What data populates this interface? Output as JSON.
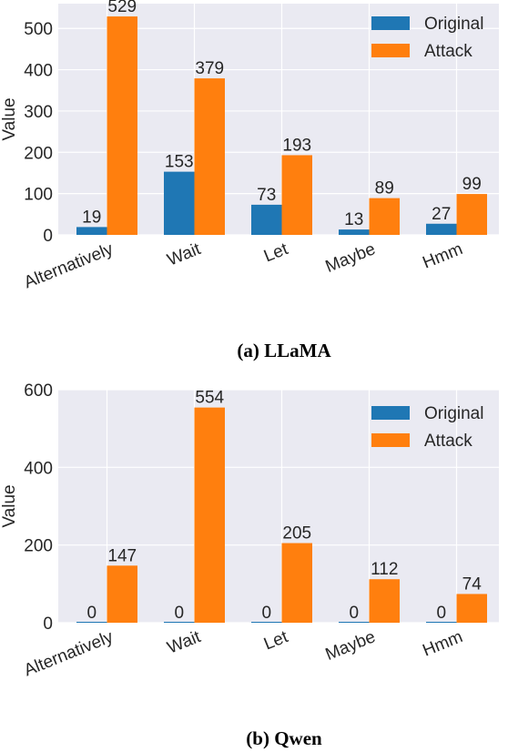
{
  "colors": {
    "original": "#1f77b4",
    "attack": "#ff7f0e",
    "plot_bg": "#eaeaf2",
    "grid": "#ffffff"
  },
  "chart_data": [
    {
      "type": "bar",
      "caption": "(a) LLaMA",
      "categories": [
        "Alternatively",
        "Wait",
        "Let",
        "Maybe",
        "Hmm"
      ],
      "series": [
        {
          "name": "Original",
          "values": [
            19,
            153,
            73,
            13,
            27
          ]
        },
        {
          "name": "Attack",
          "values": [
            529,
            379,
            193,
            89,
            99
          ]
        }
      ],
      "ylabel": "Value",
      "ylim": [
        0,
        560
      ],
      "yticks": [
        0,
        100,
        200,
        300,
        400,
        500
      ],
      "legend": "top-right",
      "grid": true
    },
    {
      "type": "bar",
      "caption": "(b) Qwen",
      "categories": [
        "Alternatively",
        "Wait",
        "Let",
        "Maybe",
        "Hmm"
      ],
      "series": [
        {
          "name": "Original",
          "values": [
            0,
            0,
            0,
            0,
            0
          ]
        },
        {
          "name": "Attack",
          "values": [
            147,
            554,
            205,
            112,
            74
          ]
        }
      ],
      "ylabel": "Value",
      "ylim": [
        0,
        600
      ],
      "yticks": [
        0,
        200,
        400,
        600
      ],
      "legend": "top-right",
      "grid": true
    }
  ]
}
